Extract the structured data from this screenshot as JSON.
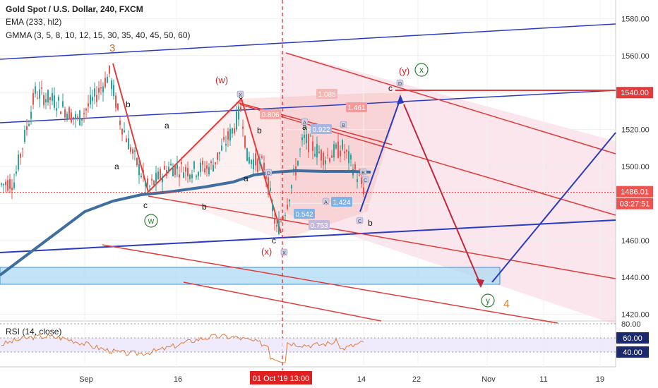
{
  "header": {
    "title": "Gold Spot / U.S. Dollar, 240, FXCM",
    "ema": "EMA (233, hl2)",
    "gmma": "GMMA (3, 5, 8, 10, 12, 15, 30, 35, 40, 45, 50, 60)"
  },
  "chart_data": {
    "type": "line",
    "title": "Gold Spot / U.S. Dollar, 240, FXCM",
    "price_axis": {
      "ticks": [
        1420,
        1440,
        1460,
        1480,
        1500,
        1520,
        1540,
        1560,
        1580
      ],
      "labels": [
        "1420.00",
        "1440.00",
        "1460.00",
        "1480.00",
        "1500.00",
        "1520.00",
        "1540.00",
        "1560.00",
        "1580.00"
      ]
    },
    "time_axis": {
      "labels": [
        "Sep",
        "16",
        "22",
        "Nov",
        "11",
        "19",
        "14"
      ],
      "highlight": "01 Oct '19   13:00"
    },
    "price_tags": {
      "current": {
        "price": 1486.01,
        "label": "1486.01"
      },
      "countdown": "03:27:51",
      "level": {
        "price": 1540,
        "label": "1540.00"
      }
    },
    "wave_labels": [
      {
        "text": "3"
      },
      {
        "text": "a"
      },
      {
        "text": "b"
      },
      {
        "text": "a"
      },
      {
        "text": "c"
      },
      {
        "text": "b"
      },
      {
        "text": "(w)"
      },
      {
        "text": "c"
      },
      {
        "text": "b"
      },
      {
        "text": "a"
      },
      {
        "text": "a"
      },
      {
        "text": "c"
      },
      {
        "text": "(x)"
      },
      {
        "text": "b"
      },
      {
        "text": "(y)"
      },
      {
        "text": "c"
      },
      {
        "text": "4"
      }
    ],
    "circled_labels": [
      {
        "text": "w"
      },
      {
        "text": "x"
      },
      {
        "text": "y"
      }
    ],
    "fib_ratios": [
      "1.085",
      "0.806",
      "1.461",
      "0.922",
      "0.542",
      "0.753",
      "1.424"
    ],
    "point_tags": [
      "X",
      "A",
      "B",
      "C",
      "D",
      "X",
      "A",
      "B",
      "C",
      "D"
    ],
    "rsi": {
      "title": "RSI (14, close)",
      "ticks": [
        80,
        60,
        40
      ],
      "labels": [
        "80.00",
        "60.00",
        "40.00"
      ]
    }
  }
}
